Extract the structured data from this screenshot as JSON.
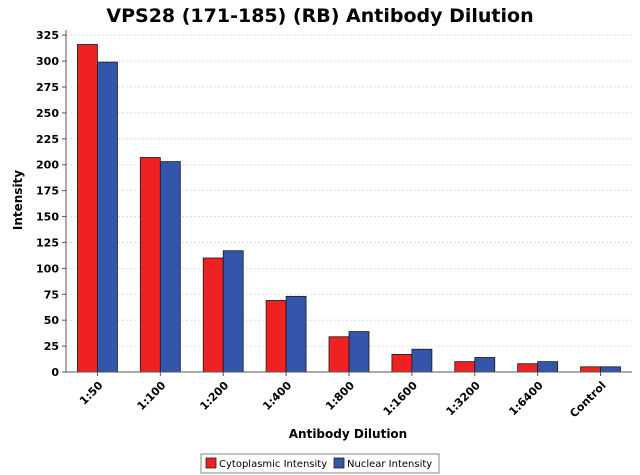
{
  "chart_data": {
    "type": "bar",
    "title": "VPS28 (171-185) (RB) Antibody Dilution",
    "xlabel": "Antibody Dilution",
    "ylabel": "Intensity",
    "categories": [
      "1:50",
      "1:100",
      "1:200",
      "1:400",
      "1:800",
      "1:1600",
      "1:3200",
      "1:6400",
      "Control"
    ],
    "series": [
      {
        "name": "Cytoplasmic Intensity",
        "color": "#ee2222",
        "values": [
          316,
          207,
          110,
          69,
          34,
          17,
          10,
          8,
          5
        ]
      },
      {
        "name": "Nuclear Intensity",
        "color": "#3355aa",
        "values": [
          299,
          203,
          117,
          73,
          39,
          22,
          14,
          10,
          5
        ]
      }
    ],
    "ylim": [
      0,
      330
    ],
    "yticks": [
      0,
      25,
      50,
      75,
      100,
      125,
      150,
      175,
      200,
      225,
      250,
      275,
      300,
      325
    ],
    "grid": true,
    "legend_position": "bottom"
  }
}
